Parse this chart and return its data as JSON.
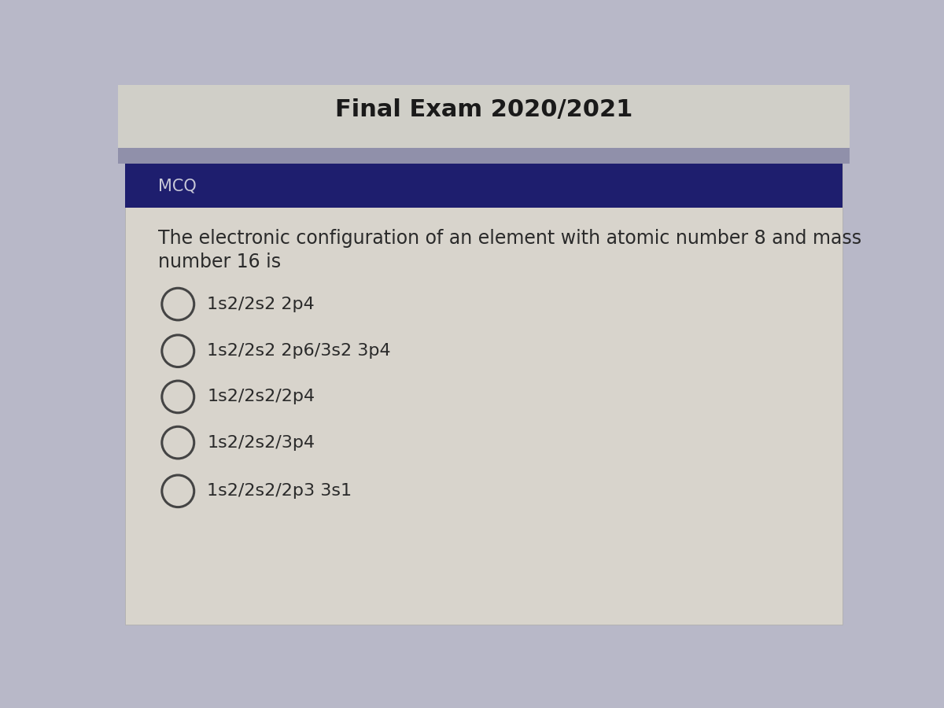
{
  "header_text": "MCQ",
  "header_bg_color": "#1e1e6e",
  "header_text_color": "#c8c8d8",
  "question_text_line1": "The electronic configuration of an element with atomic number 8 and mass",
  "question_text_line2": "number 16 is",
  "question_text_color": "#2a2a2a",
  "bg_color": "#b8b8c8",
  "card_color": "#d8d4cc",
  "top_strip_color": "#9090aa",
  "title_text": "Final Exam 2020/2021",
  "title_bg_color": "#d0cfc8",
  "options": [
    "1s2/2s2 2p4",
    "1s2/2s2 2p6/3s2 3p4",
    "1s2/2s2/2p4",
    "1s2/2s2/3p4",
    "1s2/2s2/2p3 3s1"
  ],
  "option_text_color": "#2a2a2a",
  "circle_edge_color": "#444444",
  "circle_lw": 2.2,
  "font_size_question": 17,
  "font_size_option": 16,
  "font_size_header": 15,
  "font_size_title": 22,
  "fig_width": 12.0,
  "fig_height": 9.0,
  "dpi": 100
}
